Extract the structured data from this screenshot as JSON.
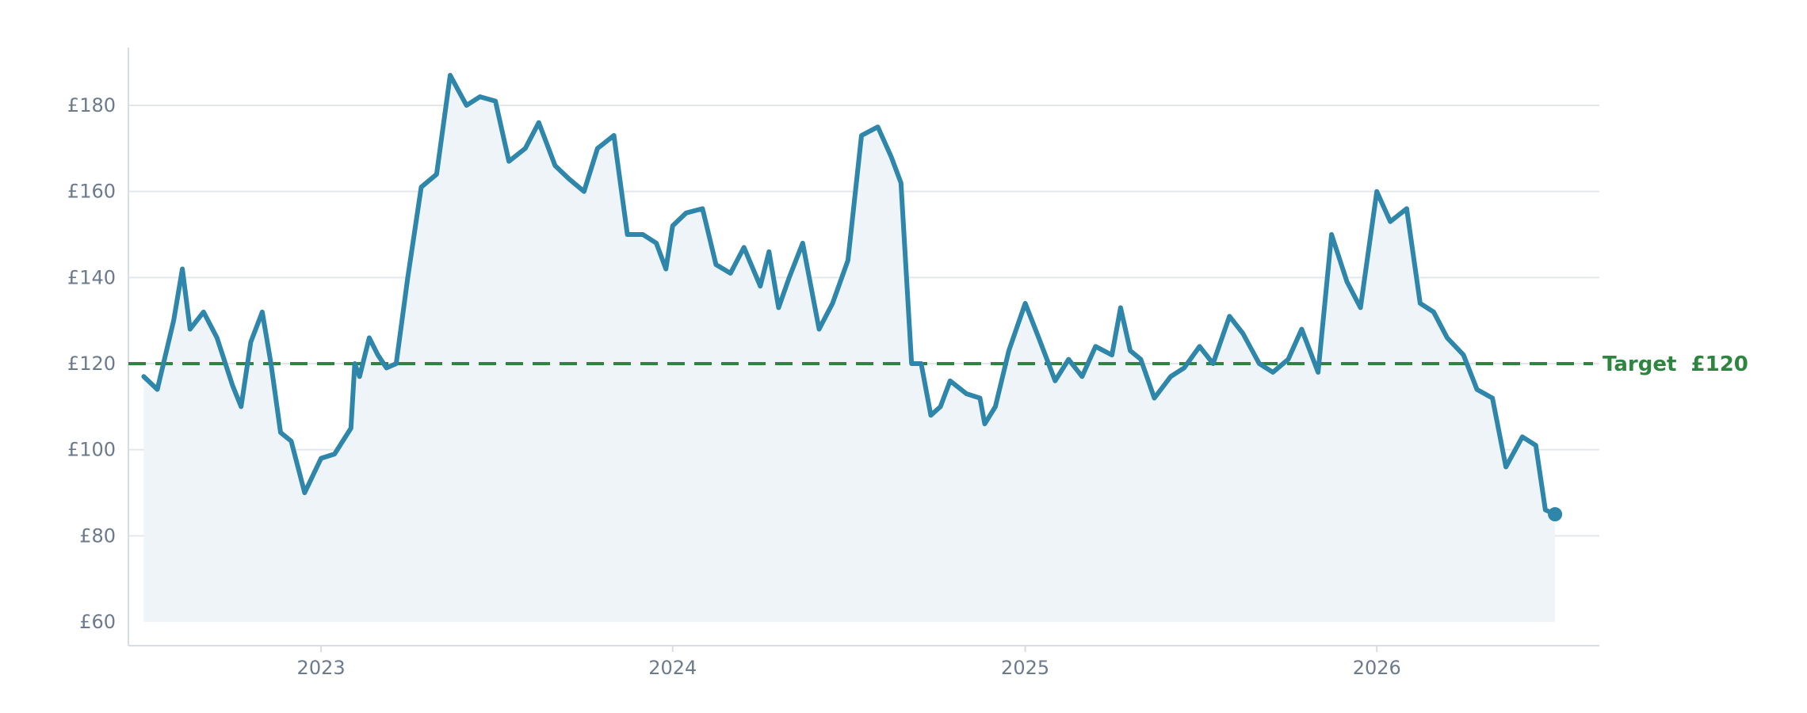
{
  "colors": {
    "line": "#2e86ab",
    "area": "#eef4f7",
    "target": "#2e8540",
    "grid": "#e3e7ec",
    "axis": "#d8dde3",
    "tick_text": "#6b7a8c"
  },
  "chart_data": {
    "type": "line",
    "title": "",
    "xlabel": "",
    "ylabel": "",
    "ylim": [
      60,
      190
    ],
    "xlim": [
      "2022-06-15",
      "2026-08-20"
    ],
    "grid": true,
    "y_ticks": [
      {
        "value": 60,
        "label": "£60"
      },
      {
        "value": 80,
        "label": "£80"
      },
      {
        "value": 100,
        "label": "£100"
      },
      {
        "value": 120,
        "label": "£120"
      },
      {
        "value": 140,
        "label": "£140"
      },
      {
        "value": 160,
        "label": "£160"
      },
      {
        "value": 180,
        "label": "£180"
      }
    ],
    "x_ticks": [
      {
        "value": "2023-01-01",
        "label": "2023"
      },
      {
        "value": "2024-01-01",
        "label": "2024"
      },
      {
        "value": "2025-01-01",
        "label": "2025"
      },
      {
        "value": "2026-01-01",
        "label": "2026"
      }
    ],
    "reference_line": {
      "value": 120,
      "label": "Target  £120"
    },
    "series": [
      {
        "x": [
          "2022-07-01",
          "2022-07-15",
          "2022-08-01",
          "2022-08-10",
          "2022-08-18",
          "2022-09-01",
          "2022-09-15",
          "2022-10-01",
          "2022-10-10",
          "2022-10-20",
          "2022-11-01",
          "2022-11-10",
          "2022-11-20",
          "2022-12-01",
          "2022-12-15",
          "2023-01-01",
          "2023-01-15",
          "2023-02-01",
          "2023-02-05",
          "2023-02-10",
          "2023-02-20",
          "2023-03-01",
          "2023-03-10",
          "2023-03-20",
          "2023-04-01",
          "2023-04-15",
          "2023-05-01",
          "2023-05-15",
          "2023-06-01",
          "2023-06-15",
          "2023-07-01",
          "2023-07-15",
          "2023-08-01",
          "2023-08-15",
          "2023-09-01",
          "2023-09-15",
          "2023-10-01",
          "2023-10-15",
          "2023-11-01",
          "2023-11-15",
          "2023-12-01",
          "2023-12-15",
          "2023-12-25",
          "2024-01-01",
          "2024-01-15",
          "2024-02-01",
          "2024-02-15",
          "2024-03-01",
          "2024-03-15",
          "2024-04-01",
          "2024-04-10",
          "2024-04-20",
          "2024-05-01",
          "2024-05-15",
          "2024-06-01",
          "2024-06-15",
          "2024-07-01",
          "2024-07-15",
          "2024-08-01",
          "2024-08-15",
          "2024-08-25",
          "2024-09-05",
          "2024-09-15",
          "2024-09-25",
          "2024-10-05",
          "2024-10-15",
          "2024-11-01",
          "2024-11-15",
          "2024-11-20",
          "2024-12-01",
          "2024-12-15",
          "2025-01-01",
          "2025-01-15",
          "2025-02-01",
          "2025-02-15",
          "2025-03-01",
          "2025-03-15",
          "2025-04-01",
          "2025-04-10",
          "2025-04-20",
          "2025-05-01",
          "2025-05-15",
          "2025-06-01",
          "2025-06-15",
          "2025-07-01",
          "2025-07-15",
          "2025-08-01",
          "2025-08-15",
          "2025-09-01",
          "2025-09-15",
          "2025-10-01",
          "2025-10-15",
          "2025-11-01",
          "2025-11-15",
          "2025-12-01",
          "2025-12-15",
          "2026-01-01",
          "2026-01-15",
          "2026-02-01",
          "2026-02-15",
          "2026-03-01",
          "2026-03-15",
          "2026-04-01",
          "2026-04-15",
          "2026-05-01",
          "2026-05-15",
          "2026-06-01",
          "2026-06-15",
          "2026-06-25",
          "2026-07-05"
        ],
        "y": [
          117,
          114,
          130,
          142,
          128,
          132,
          126,
          115,
          110,
          125,
          132,
          120,
          104,
          102,
          90,
          98,
          99,
          105,
          120,
          117,
          126,
          122,
          119,
          120,
          140,
          161,
          164,
          187,
          180,
          182,
          181,
          167,
          170,
          176,
          166,
          163,
          160,
          170,
          173,
          150,
          150,
          148,
          142,
          152,
          155,
          156,
          143,
          141,
          147,
          138,
          146,
          133,
          140,
          148,
          128,
          134,
          144,
          173,
          175,
          168,
          162,
          120,
          120,
          108,
          110,
          116,
          113,
          112,
          106,
          110,
          123,
          134,
          126,
          116,
          121,
          117,
          124,
          122,
          133,
          123,
          121,
          112,
          117,
          119,
          124,
          120,
          131,
          127,
          120,
          118,
          121,
          128,
          118,
          150,
          139,
          133,
          160,
          153,
          156,
          134,
          132,
          126,
          122,
          114,
          112,
          96,
          103,
          101,
          86,
          85
        ],
        "values_note": ""
      }
    ]
  }
}
